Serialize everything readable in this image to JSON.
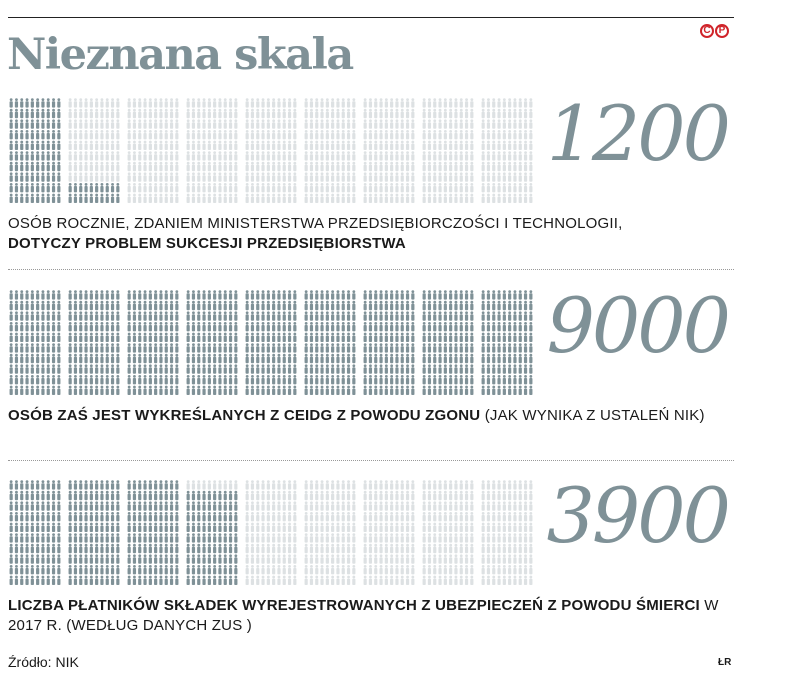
{
  "title": "Nieznana skala",
  "logo": {
    "left": "C",
    "right": "P"
  },
  "chart_data": [
    {
      "type": "pictogram",
      "value": 1200,
      "value_label": "1200",
      "description_normal": "OSÓB ROCZNIE, ZDANIEM MINISTERSTWA PRZEDSIĘBIORCZOŚCI I TECHNOLOGII,",
      "description_bold": "DOTYCZY PROBLEM SUKCESJI PRZEDSIĘBIORSTWA",
      "description_tail": "",
      "scale_max": 9000,
      "filled_color": "#7f9197",
      "empty_color": "#dde1e3"
    },
    {
      "type": "pictogram",
      "value": 9000,
      "value_label": "9000",
      "description_normal": "",
      "description_bold": "OSÓB ZAŚ JEST WYKREŚLANYCH Z CEIDG Z POWODU ZGONU",
      "description_tail": "(JAK WYNIKA Z USTALEŃ NIK)",
      "scale_max": 9000,
      "filled_color": "#7f9197",
      "empty_color": "#dde1e3"
    },
    {
      "type": "pictogram",
      "value": 3900,
      "value_label": "3900",
      "description_normal": "",
      "description_bold": "LICZBA PŁATNIKÓW SKŁADEK WYREJESTROWANYCH Z UBEZPIECZEŃ Z POWODU ŚMIERCI",
      "description_tail": "W 2017 R. (WEDŁUG DANYCH ZUS )",
      "scale_max": 9000,
      "filled_color": "#7f9197",
      "empty_color": "#dde1e3"
    }
  ],
  "footer": {
    "source": "Źródło: NIK",
    "author": "ŁR"
  }
}
